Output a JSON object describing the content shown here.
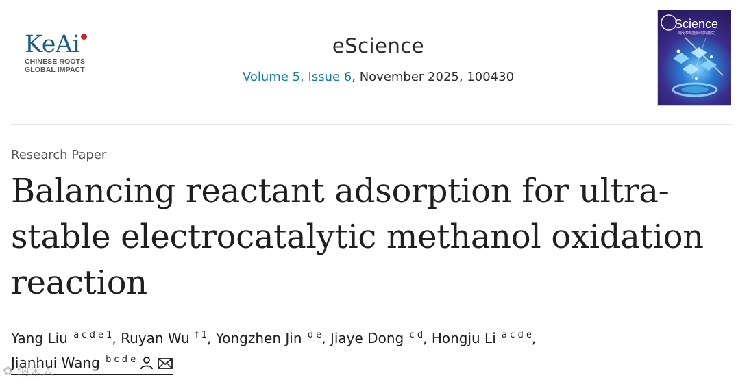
{
  "publisher": {
    "name": "KeAi",
    "tagline_1": "CHINESE ROOTS",
    "tagline_2": "GLOBAL IMPACT"
  },
  "journal": {
    "name": "eScience",
    "volume_issue": "Volume 5, Issue 6",
    "date_id": ", November 2025, 100430",
    "cover_title": "Science",
    "cover_subtitle": "电化学与能源科学(英文)"
  },
  "article": {
    "type": "Research Paper",
    "title_line_1": "Balancing reactant adsorption for ultra-",
    "title_line_2": "stable electrocatalytic methanol oxidation",
    "title_line_3": "reaction"
  },
  "authors": [
    {
      "name": "Yang Liu",
      "affiliations": "a c d e 1"
    },
    {
      "name": "Ruyan Wu",
      "affiliations": "f 1"
    },
    {
      "name": "Yongzhen Jin",
      "affiliations": "d e"
    },
    {
      "name": "Jiaye Dong",
      "affiliations": "c d"
    },
    {
      "name": "Hongju Li",
      "affiliations": "a c d e"
    },
    {
      "name": "Jianhui Wang",
      "affiliations": "b c d e"
    }
  ],
  "separator": ", ",
  "icons": {
    "corresponding_author": "person-icon",
    "email": "envelope-icon"
  },
  "colors": {
    "link": "#0c7db5",
    "logo_blue": "#1b5d85",
    "logo_red": "#d4202b"
  },
  "watermark": "✿ 纳米人"
}
